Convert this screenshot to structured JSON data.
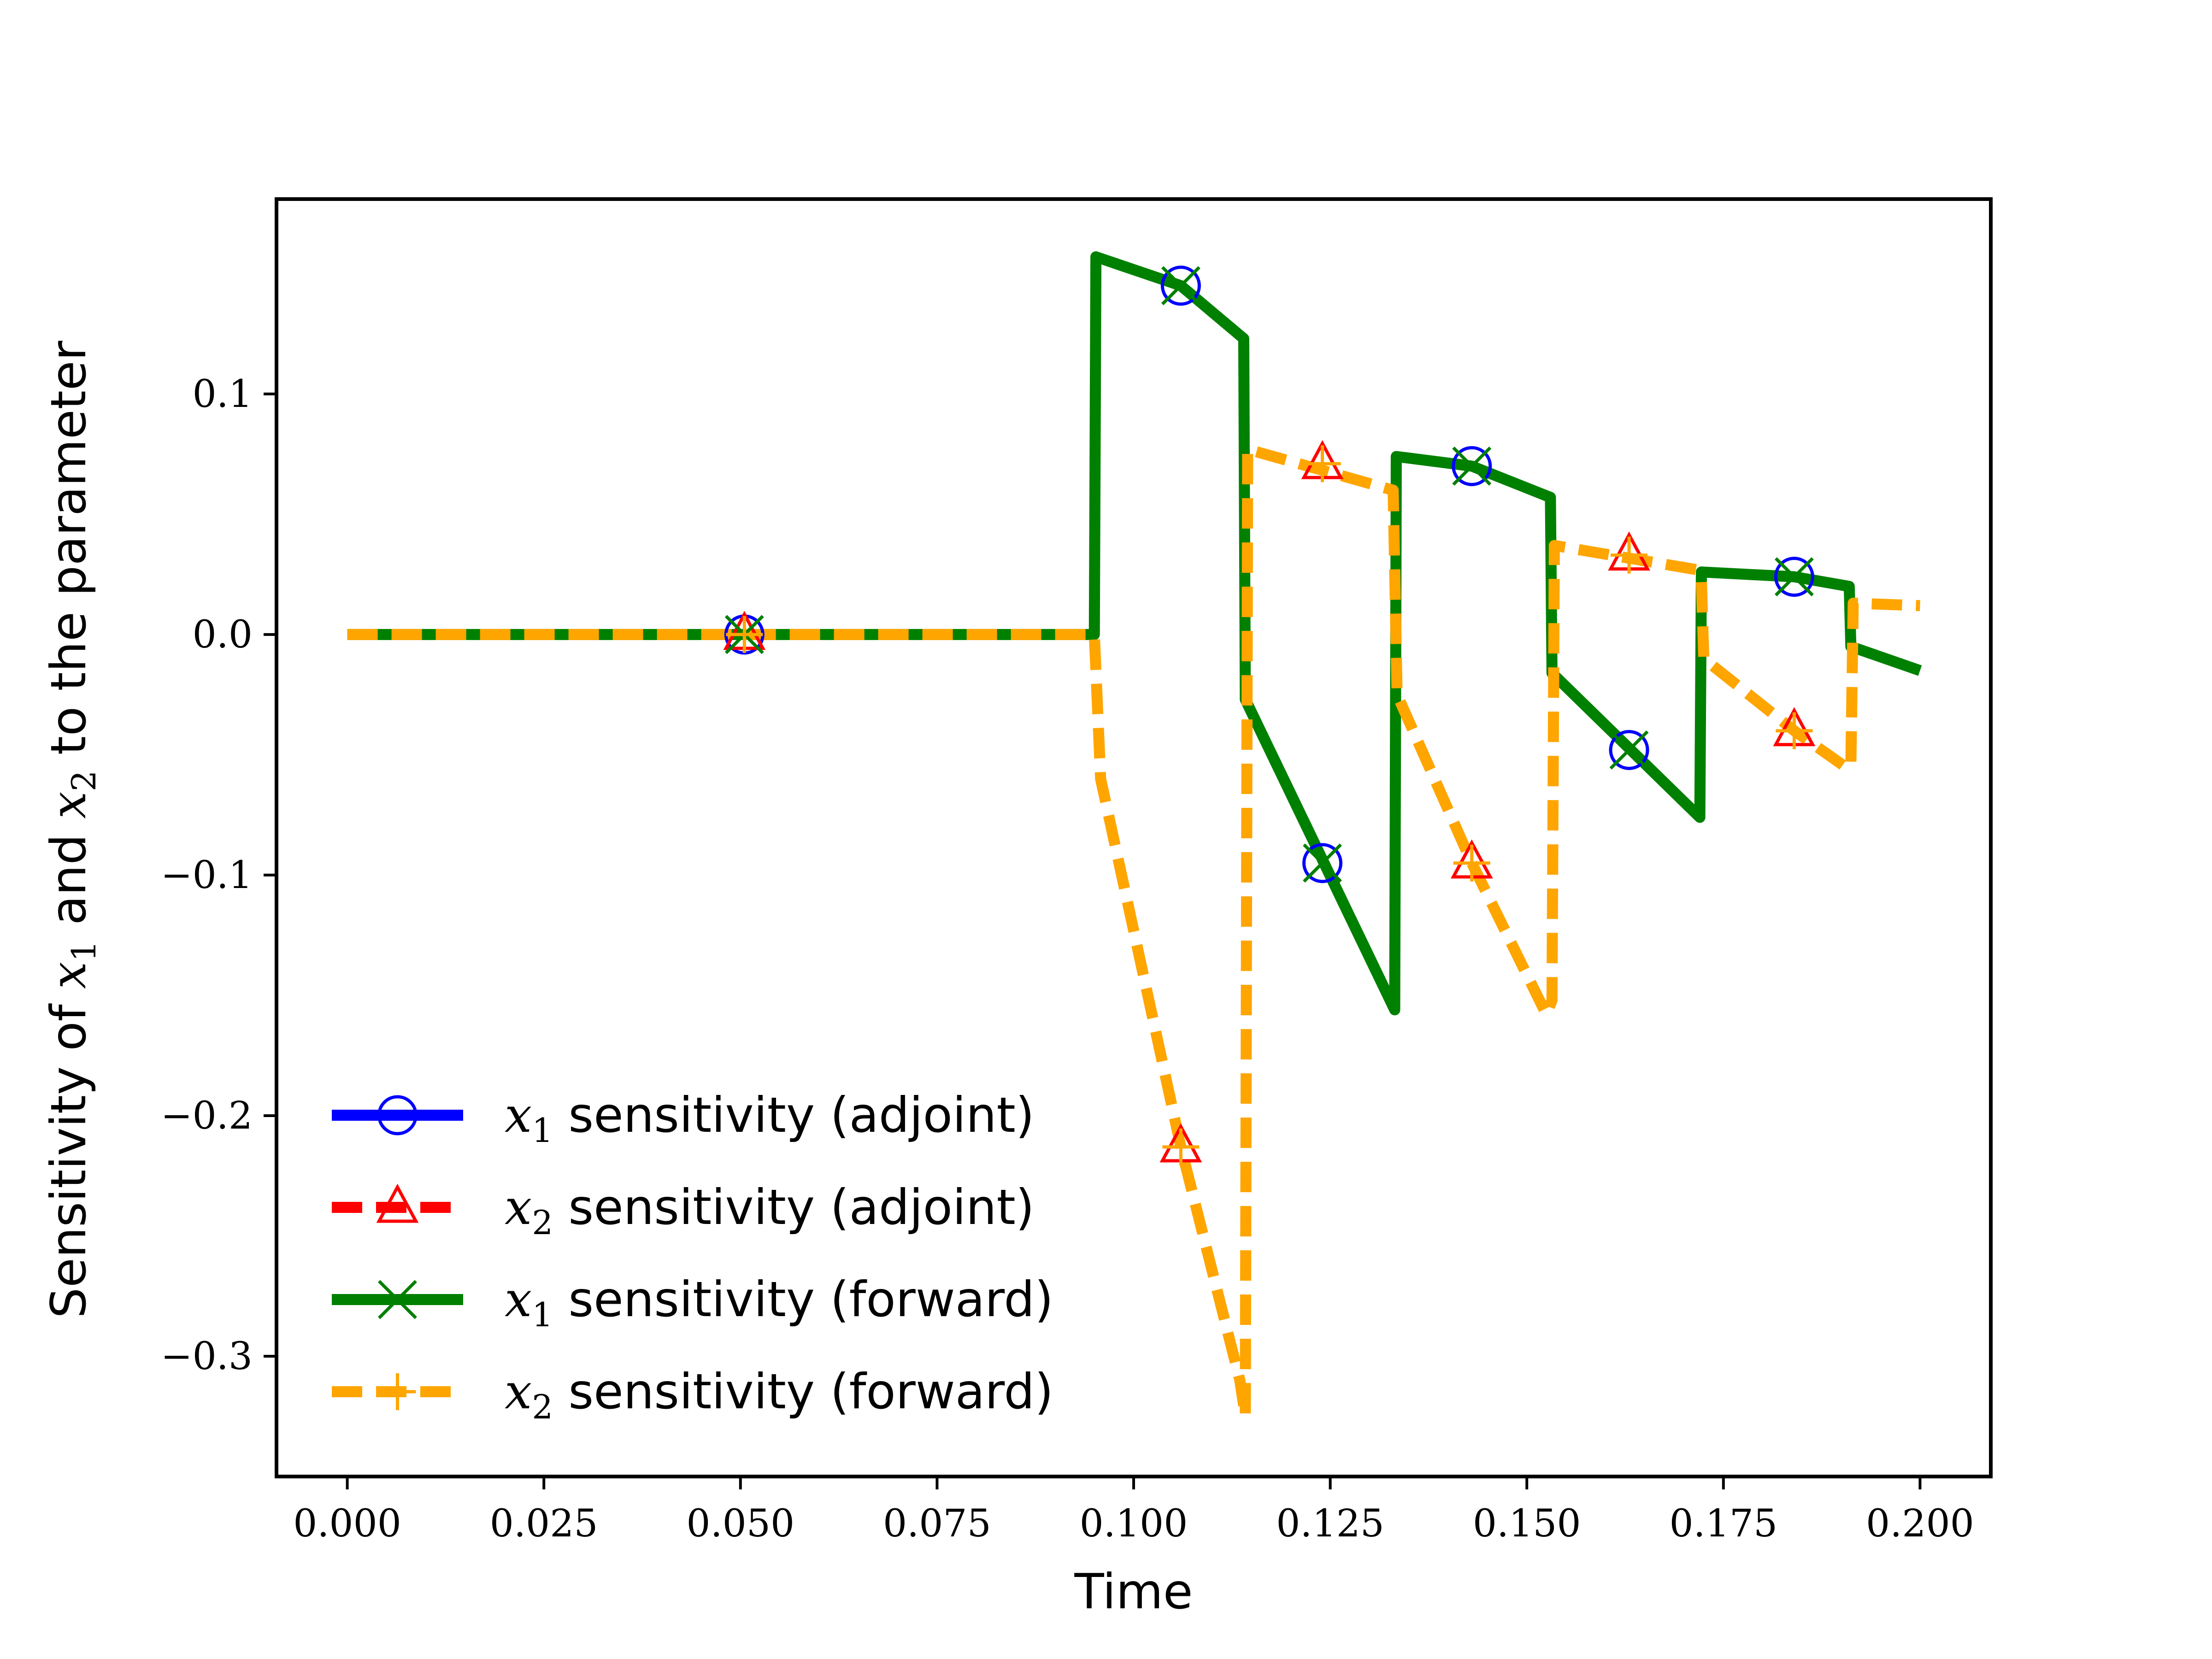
{
  "chart_data": {
    "type": "line",
    "title": "",
    "xlabel": "Time",
    "ylabel": {
      "before": "Sensitivity of ",
      "var1": "x",
      "sub1": "1",
      "middle": " and ",
      "var2": "x",
      "sub2": "2",
      "after": " to the parameter"
    },
    "xlim": [
      -0.009,
      0.209
    ],
    "ylim": [
      -0.35,
      0.181
    ],
    "xticks": [
      0.0,
      0.025,
      0.05,
      0.075,
      0.1,
      0.125,
      0.15,
      0.175,
      0.2
    ],
    "xtick_labels": [
      "0.000",
      "0.025",
      "0.050",
      "0.075",
      "0.100",
      "0.125",
      "0.150",
      "0.175",
      "0.200"
    ],
    "yticks": [
      0.1,
      0.0,
      -0.1,
      -0.2,
      -0.3
    ],
    "ytick_labels": [
      "0.1",
      "0.0",
      "−0.1",
      "−0.2",
      "−0.3"
    ],
    "grid": false,
    "legend_location": "lower-left",
    "series": [
      {
        "name": "x1 sensitivity (adjoint)",
        "legend_var": "x",
        "legend_sub": "1",
        "legend_text": " sensitivity (adjoint)",
        "color": "#0000ff",
        "linestyle": "solid",
        "marker": "circle",
        "draw_line": false,
        "x": [
          0.0,
          0.095,
          0.0952,
          0.106,
          0.114,
          0.1142,
          0.1332,
          0.1334,
          0.143,
          0.153,
          0.1532,
          0.172,
          0.1722,
          0.184,
          0.191,
          0.1912,
          0.2
        ],
        "y": [
          0.0,
          0.0,
          0.157,
          0.145,
          0.123,
          -0.027,
          -0.156,
          0.074,
          0.07,
          0.057,
          -0.016,
          -0.076,
          0.026,
          0.024,
          0.02,
          -0.005,
          -0.015
        ],
        "markers_x": [
          0.0505,
          0.106,
          0.124,
          0.143,
          0.163,
          0.184
        ],
        "markers_y": [
          0.0,
          0.145,
          -0.095,
          0.07,
          -0.048,
          0.024
        ]
      },
      {
        "name": "x2 sensitivity (adjoint)",
        "legend_var": "x",
        "legend_sub": "2",
        "legend_text": " sensitivity (adjoint)",
        "color": "#ff0000",
        "linestyle": "dashed",
        "marker": "triangle",
        "draw_line": false,
        "x": [
          0.0,
          0.095,
          0.0958,
          0.106,
          0.1135,
          0.1142,
          0.1145,
          0.133,
          0.1335,
          0.143,
          0.1525,
          0.1532,
          0.1535,
          0.1715,
          0.1722,
          0.1725,
          0.184,
          0.1905,
          0.1912,
          0.1915,
          0.2
        ],
        "y": [
          0.0,
          0.0,
          -0.06,
          -0.213,
          -0.31,
          -0.325,
          0.077,
          0.06,
          -0.025,
          -0.095,
          -0.158,
          -0.152,
          0.037,
          0.027,
          0.022,
          -0.01,
          -0.04,
          -0.055,
          -0.055,
          0.013,
          0.012
        ],
        "markers_x": [
          0.0505,
          0.106,
          0.124,
          0.143,
          0.163,
          0.184
        ],
        "markers_y": [
          0.0,
          -0.213,
          0.071,
          -0.095,
          0.033,
          -0.04
        ]
      },
      {
        "name": "x1 sensitivity (forward)",
        "legend_var": "x",
        "legend_sub": "1",
        "legend_text": " sensitivity (forward)",
        "color": "#008000",
        "linestyle": "solid",
        "marker": "x",
        "draw_line": true,
        "x": [
          0.0,
          0.095,
          0.0952,
          0.106,
          0.114,
          0.1142,
          0.1332,
          0.1334,
          0.143,
          0.153,
          0.1532,
          0.172,
          0.1722,
          0.184,
          0.191,
          0.1912,
          0.2
        ],
        "y": [
          0.0,
          0.0,
          0.157,
          0.145,
          0.123,
          -0.027,
          -0.156,
          0.074,
          0.07,
          0.057,
          -0.016,
          -0.076,
          0.026,
          0.024,
          0.02,
          -0.005,
          -0.015
        ],
        "markers_x": [
          0.0505,
          0.106,
          0.124,
          0.143,
          0.163,
          0.184
        ],
        "markers_y": [
          0.0,
          0.145,
          -0.095,
          0.07,
          -0.048,
          0.024
        ]
      },
      {
        "name": "x2 sensitivity (forward)",
        "legend_var": "x",
        "legend_sub": "2",
        "legend_text": " sensitivity (forward)",
        "color": "#ffa500",
        "linestyle": "dashed",
        "marker": "plus",
        "draw_line": true,
        "x": [
          0.0,
          0.095,
          0.0958,
          0.106,
          0.1135,
          0.1142,
          0.1145,
          0.133,
          0.1335,
          0.143,
          0.1525,
          0.1532,
          0.1535,
          0.1715,
          0.1722,
          0.1725,
          0.184,
          0.1905,
          0.1912,
          0.1915,
          0.2
        ],
        "y": [
          0.0,
          0.0,
          -0.06,
          -0.213,
          -0.31,
          -0.325,
          0.077,
          0.06,
          -0.025,
          -0.095,
          -0.158,
          -0.152,
          0.037,
          0.027,
          0.022,
          -0.01,
          -0.04,
          -0.055,
          -0.055,
          0.013,
          0.012
        ],
        "markers_x": [
          0.0505,
          0.106,
          0.124,
          0.143,
          0.163,
          0.184
        ],
        "markers_y": [
          0.0,
          -0.213,
          0.071,
          -0.095,
          0.033,
          -0.04
        ]
      }
    ]
  }
}
